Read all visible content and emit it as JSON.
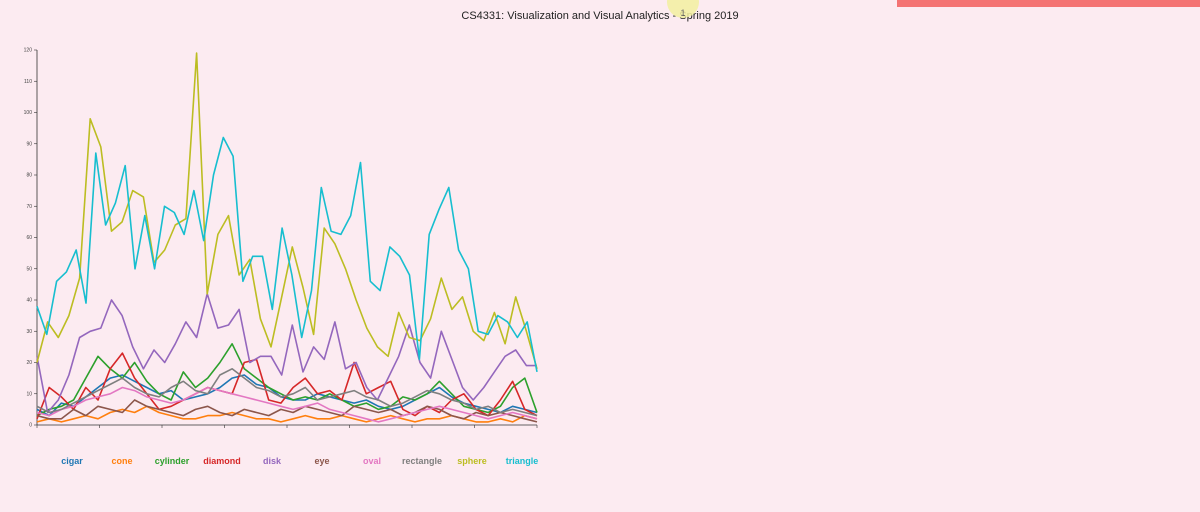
{
  "header": {
    "title": "CS4331: Visualization and Visual Analytics - Spring 2019",
    "cursor_label": "1"
  },
  "colors": {
    "background": "#fcebf1",
    "red_bar": "#f47373"
  },
  "chart_data": {
    "type": "line",
    "title": "",
    "xlabel": "",
    "ylabel": "",
    "ylim": [
      0,
      120
    ],
    "yticks": [
      0,
      10,
      20,
      30,
      40,
      50,
      60,
      70,
      80,
      90,
      100,
      110,
      120
    ],
    "xticks": [
      0,
      5,
      10,
      15,
      20,
      25,
      30,
      35,
      40
    ],
    "grid": false,
    "legend": "bottom",
    "series": [
      {
        "name": "cigar",
        "color": "#1f77b4",
        "values": [
          5,
          3,
          7,
          6,
          9,
          12,
          15,
          16,
          14,
          12,
          10,
          11,
          8,
          9,
          10,
          12,
          15,
          16,
          13,
          12,
          9,
          8,
          8,
          10,
          9,
          8,
          7,
          8,
          6,
          5,
          6,
          8,
          10,
          12,
          9,
          7,
          6,
          5,
          4,
          6,
          5,
          4
        ]
      },
      {
        "name": "cone",
        "color": "#ff7f0e",
        "values": [
          1,
          2,
          1,
          2,
          3,
          2,
          4,
          5,
          4,
          6,
          4,
          3,
          2,
          2,
          3,
          3,
          4,
          3,
          2,
          2,
          1,
          2,
          3,
          2,
          2,
          3,
          2,
          1,
          2,
          3,
          2,
          1,
          2,
          2,
          3,
          2,
          1,
          1,
          2,
          1,
          3,
          2
        ]
      },
      {
        "name": "cylinder",
        "color": "#2ca02c",
        "values": [
          3,
          5,
          6,
          8,
          15,
          22,
          18,
          15,
          20,
          14,
          10,
          8,
          17,
          12,
          15,
          20,
          26,
          18,
          15,
          12,
          10,
          8,
          9,
          8,
          10,
          8,
          6,
          7,
          5,
          6,
          9,
          8,
          10,
          14,
          10,
          6,
          5,
          4,
          6,
          12,
          15,
          4
        ]
      },
      {
        "name": "diamond",
        "color": "#d62728",
        "values": [
          2,
          12,
          9,
          5,
          12,
          8,
          18,
          23,
          15,
          10,
          5,
          6,
          8,
          10,
          12,
          11,
          10,
          20,
          21,
          8,
          7,
          12,
          15,
          10,
          11,
          8,
          20,
          10,
          12,
          14,
          5,
          3,
          6,
          4,
          8,
          10,
          5,
          3,
          8,
          14,
          5,
          3
        ]
      },
      {
        "name": "disk",
        "color": "#9467bd",
        "values": [
          22,
          4,
          8,
          16,
          28,
          30,
          31,
          40,
          35,
          25,
          18,
          24,
          20,
          26,
          33,
          28,
          42,
          31,
          32,
          37,
          20,
          22,
          22,
          16,
          32,
          17,
          25,
          21,
          33,
          18,
          20,
          12,
          8,
          15,
          22,
          32,
          20,
          15,
          30,
          21,
          12,
          8,
          12,
          17,
          22,
          24,
          19,
          19
        ]
      },
      {
        "name": "eye",
        "color": "#8c564b",
        "values": [
          3,
          2,
          2,
          5,
          3,
          6,
          5,
          4,
          8,
          6,
          5,
          4,
          3,
          5,
          6,
          4,
          3,
          5,
          4,
          3,
          5,
          4,
          6,
          5,
          4,
          3,
          6,
          5,
          4,
          5,
          3,
          4,
          6,
          5,
          3,
          2,
          4,
          3,
          4,
          3,
          2,
          1
        ]
      },
      {
        "name": "oval",
        "color": "#e377c2",
        "values": [
          4,
          3,
          5,
          6,
          8,
          9,
          10,
          12,
          11,
          9,
          8,
          7,
          8,
          10,
          12,
          11,
          10,
          9,
          8,
          7,
          6,
          5,
          6,
          7,
          5,
          4,
          3,
          2,
          1,
          2,
          3,
          4,
          5,
          6,
          5,
          4,
          3,
          2,
          3,
          4,
          3,
          2
        ]
      },
      {
        "name": "rectangle",
        "color": "#7f7f7f",
        "values": [
          6,
          4,
          5,
          7,
          9,
          11,
          13,
          15,
          12,
          10,
          9,
          12,
          14,
          11,
          10,
          16,
          18,
          15,
          12,
          11,
          9,
          10,
          12,
          8,
          9,
          10,
          11,
          9,
          8,
          6,
          7,
          9,
          11,
          10,
          8,
          7,
          5,
          6,
          4,
          5,
          4,
          3
        ]
      },
      {
        "name": "sphere",
        "color": "#bcbd22",
        "values": [
          20,
          33,
          28,
          35,
          47,
          98,
          89,
          62,
          65,
          75,
          73,
          52,
          56,
          64,
          66,
          119,
          42,
          61,
          67,
          48,
          53,
          34,
          25,
          41,
          57,
          44,
          29,
          63,
          58,
          50,
          40,
          31,
          25,
          22,
          36,
          28,
          27,
          34,
          47,
          37,
          41,
          30,
          27,
          36,
          26,
          41,
          30,
          18
        ]
      },
      {
        "name": "triangle",
        "color": "#17becf",
        "values": [
          38,
          29,
          46,
          49,
          56,
          39,
          87,
          64,
          71,
          83,
          50,
          67,
          50,
          70,
          68,
          61,
          75,
          59,
          80,
          92,
          86,
          46,
          54,
          54,
          37,
          63,
          48,
          28,
          43,
          76,
          62,
          61,
          67,
          84,
          46,
          43,
          57,
          54,
          48,
          21,
          61,
          69,
          76,
          56,
          50,
          30,
          29,
          35,
          33,
          28,
          33,
          17
        ]
      }
    ]
  }
}
